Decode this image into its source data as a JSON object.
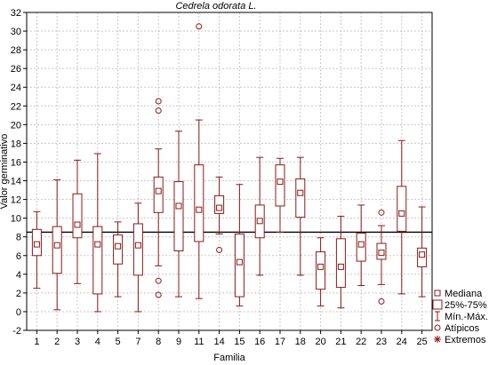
{
  "chart_data": {
    "type": "boxplot",
    "title": "Cedrela odorata L.",
    "xlabel": "Familia",
    "ylabel": "Valor  germinativo",
    "ylim": [
      -2,
      32
    ],
    "yticks": [
      -2,
      0,
      2,
      4,
      6,
      8,
      10,
      12,
      14,
      16,
      18,
      20,
      22,
      24,
      26,
      28,
      30,
      32
    ],
    "grid": true,
    "reference_line": 8.5,
    "categories": [
      "1",
      "2",
      "3",
      "4",
      "5",
      "7",
      "8",
      "9",
      "11",
      "14",
      "15",
      "16",
      "17",
      "18",
      "20",
      "21",
      "22",
      "23",
      "24",
      "25"
    ],
    "boxes": [
      {
        "min": 2.5,
        "q1": 6.0,
        "median": 7.2,
        "q3": 8.8,
        "max": 10.7,
        "outliers": []
      },
      {
        "min": 0.2,
        "q1": 4.1,
        "median": 7.1,
        "q3": 9.1,
        "max": 14.1,
        "outliers": []
      },
      {
        "min": 3.0,
        "q1": 7.9,
        "median": 9.3,
        "q3": 12.6,
        "max": 16.2,
        "outliers": []
      },
      {
        "min": 0.0,
        "q1": 1.9,
        "median": 7.2,
        "q3": 9.1,
        "max": 16.9,
        "outliers": []
      },
      {
        "min": 1.6,
        "q1": 5.1,
        "median": 7.0,
        "q3": 8.2,
        "max": 9.6,
        "outliers": []
      },
      {
        "min": 0.0,
        "q1": 3.9,
        "median": 7.1,
        "q3": 9.4,
        "max": 11.6,
        "outliers": []
      },
      {
        "min": 4.9,
        "q1": 10.6,
        "median": 12.9,
        "q3": 14.4,
        "max": 17.4,
        "outliers": [
          22.5,
          21.5,
          3.3,
          1.8
        ]
      },
      {
        "min": 1.6,
        "q1": 6.5,
        "median": 11.3,
        "q3": 13.9,
        "max": 19.3,
        "outliers": []
      },
      {
        "min": 1.4,
        "q1": 7.5,
        "median": 10.9,
        "q3": 15.7,
        "max": 20.5,
        "outliers": [
          30.5
        ]
      },
      {
        "min": 8.3,
        "q1": 10.5,
        "median": 11.1,
        "q3": 12.4,
        "max": 14.4,
        "outliers": [
          6.6
        ]
      },
      {
        "min": 0.6,
        "q1": 1.6,
        "median": 5.3,
        "q3": 8.3,
        "max": 13.6,
        "outliers": []
      },
      {
        "min": 3.9,
        "q1": 7.9,
        "median": 9.7,
        "q3": 11.4,
        "max": 16.5,
        "outliers": []
      },
      {
        "min": 8.5,
        "q1": 11.3,
        "median": 13.9,
        "q3": 15.7,
        "max": 16.4,
        "outliers": []
      },
      {
        "min": 3.9,
        "q1": 10.1,
        "median": 12.7,
        "q3": 14.2,
        "max": 16.5,
        "outliers": []
      },
      {
        "min": 0.6,
        "q1": 2.4,
        "median": 4.8,
        "q3": 6.4,
        "max": 7.9,
        "outliers": []
      },
      {
        "min": 0.4,
        "q1": 2.6,
        "median": 4.8,
        "q3": 7.8,
        "max": 10.2,
        "outliers": []
      },
      {
        "min": 2.8,
        "q1": 5.4,
        "median": 7.2,
        "q3": 8.4,
        "max": 11.4,
        "outliers": []
      },
      {
        "min": 2.9,
        "q1": 5.6,
        "median": 6.3,
        "q3": 7.3,
        "max": 9.2,
        "outliers": [
          10.6,
          1.1
        ]
      },
      {
        "min": 1.9,
        "q1": 8.6,
        "median": 10.5,
        "q3": 13.4,
        "max": 18.3,
        "outliers": []
      },
      {
        "min": 1.6,
        "q1": 4.8,
        "median": 6.1,
        "q3": 6.8,
        "max": 11.2,
        "outliers": []
      }
    ],
    "legend": {
      "placement": "bottom-right",
      "entries": [
        "Mediana",
        "25%-75%",
        "Mín.-Máx.",
        "Atípicos",
        "Extremos"
      ]
    },
    "colors": {
      "box": "#8b1a1a",
      "grid": "#c8c8c8",
      "reference": "#000000"
    }
  }
}
